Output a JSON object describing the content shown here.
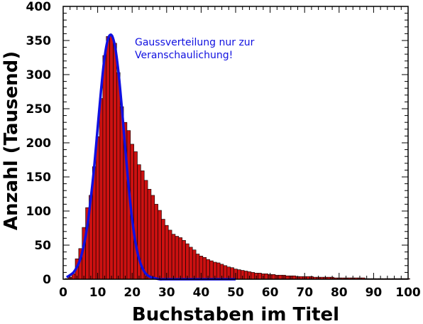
{
  "chart_data": {
    "type": "bar",
    "title": "",
    "xlabel": "Buchstaben im Titel",
    "ylabel": "Anzahl (Tausend)",
    "xlim": [
      0,
      100
    ],
    "ylim": [
      0,
      400
    ],
    "x_ticks": [
      0,
      10,
      20,
      30,
      40,
      50,
      60,
      70,
      80,
      90,
      100
    ],
    "y_ticks": [
      0,
      50,
      100,
      150,
      200,
      250,
      300,
      350,
      400
    ],
    "grid": false,
    "annotation": "Gaussverteilung nur zur\nVeranschaulichung!",
    "colors": {
      "bars": "#cc1111",
      "bar_edge": "#000000",
      "gauss_curve": "#1010e0",
      "annotation": "#1010e0"
    },
    "series": [
      {
        "name": "",
        "type": "bar",
        "x": [
          1,
          2,
          3,
          4,
          5,
          6,
          7,
          8,
          9,
          10,
          11,
          12,
          13,
          14,
          15,
          16,
          17,
          18,
          19,
          20,
          21,
          22,
          23,
          24,
          25,
          26,
          27,
          28,
          29,
          30,
          31,
          32,
          33,
          34,
          35,
          36,
          37,
          38,
          39,
          40,
          41,
          42,
          43,
          44,
          45,
          46,
          47,
          48,
          49,
          50,
          51,
          52,
          53,
          54,
          55,
          56,
          57,
          58,
          58.9,
          60,
          61,
          62,
          63,
          64,
          65,
          66,
          67,
          68,
          69,
          70,
          71,
          72,
          73,
          74,
          75,
          76,
          77,
          78,
          79,
          80,
          81,
          82,
          83,
          84,
          85,
          86,
          87,
          88,
          89,
          90,
          91,
          92,
          93,
          94,
          95,
          96,
          97,
          98,
          99,
          100
        ],
        "values": [
          1,
          3,
          8,
          30,
          45,
          76,
          105,
          123,
          165,
          209,
          265,
          328,
          356,
          357,
          346,
          303,
          253,
          230,
          218,
          198,
          187,
          168,
          159,
          145,
          132,
          123,
          110,
          101,
          88,
          79,
          72,
          66,
          63,
          61,
          57,
          52,
          47,
          43,
          37,
          34,
          32,
          29,
          27,
          25,
          24,
          22,
          20,
          18,
          17,
          15,
          14,
          13,
          12,
          11,
          10,
          9,
          9,
          8,
          8,
          7,
          7,
          6,
          6,
          6,
          5,
          5,
          5,
          4,
          4,
          4,
          4,
          4,
          3,
          3,
          3,
          3,
          3,
          3,
          2,
          2,
          2,
          2,
          2,
          2,
          2,
          2,
          2,
          1,
          1,
          1,
          1,
          1,
          1,
          1,
          1,
          1,
          1,
          1,
          1,
          1
        ]
      },
      {
        "name": "",
        "type": "line",
        "description_note": "",
        "x": [
          1,
          2,
          3,
          4,
          5,
          6,
          7,
          8,
          9,
          10,
          11,
          12,
          13,
          14,
          15,
          16,
          17,
          18,
          19,
          20,
          21,
          22,
          23,
          24,
          25,
          26,
          27,
          28,
          29,
          30,
          31,
          32,
          33,
          34,
          35,
          36,
          37,
          38,
          39,
          40,
          41,
          42,
          43,
          44,
          45,
          46,
          47,
          48,
          49,
          50
        ],
        "values": [
          3,
          6,
          10,
          18,
          30,
          50,
          78,
          118,
          165,
          222,
          278,
          325,
          352,
          358,
          342,
          305,
          252,
          192,
          135,
          88,
          53,
          30,
          16,
          8,
          4,
          2,
          1,
          0,
          0,
          0,
          0,
          0,
          0,
          0,
          0,
          0,
          0,
          0,
          0,
          0,
          0,
          0,
          0,
          0,
          0,
          0,
          0,
          0,
          0,
          0
        ]
      }
    ]
  }
}
